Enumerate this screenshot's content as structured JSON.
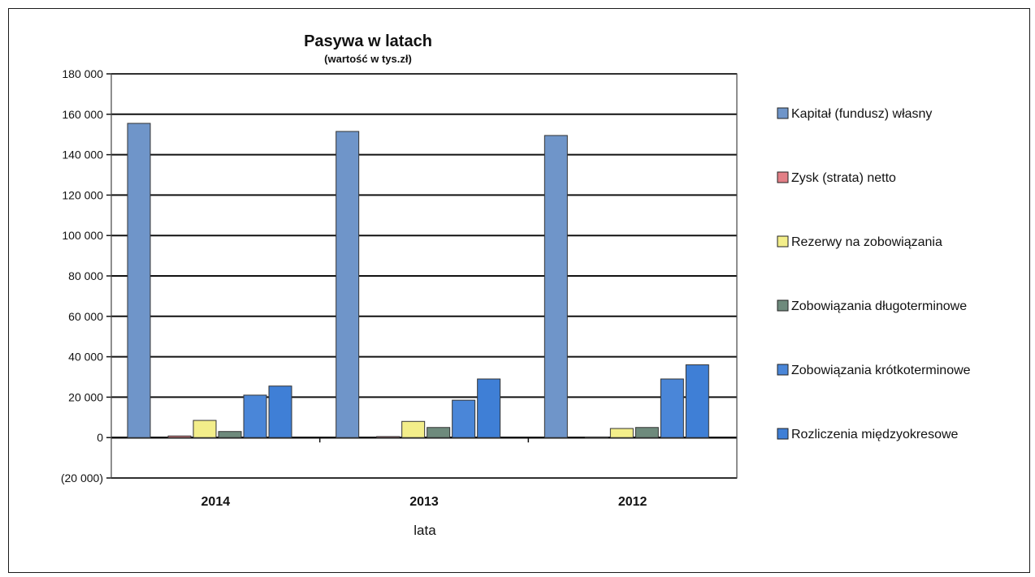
{
  "chart_data": {
    "type": "bar",
    "title": "Pasywa w latach",
    "subtitle": "(wartość w tys.zł)",
    "xlabel": "lata",
    "ylabel": "",
    "categories": [
      "2014",
      "2013",
      "2012"
    ],
    "ylim": [
      -20000,
      180000
    ],
    "yticks": [
      -20000,
      0,
      20000,
      40000,
      60000,
      80000,
      100000,
      120000,
      140000,
      160000,
      180000
    ],
    "ytick_labels": [
      "(20 000)",
      "0",
      "20 000",
      "40 000",
      "60 000",
      "80 000",
      "100 000",
      "120 000",
      "140 000",
      "160 000",
      "180 000"
    ],
    "grid": true,
    "legend_position": "right",
    "series": [
      {
        "name": "Kapitał (fundusz) własny",
        "values": [
          155500,
          151500,
          149500
        ],
        "color": "#6f95c9"
      },
      {
        "name": "Zysk (strata) netto",
        "values": [
          800,
          500,
          300
        ],
        "color": "#e27f86"
      },
      {
        "name": "Rezerwy na zobowiązania",
        "values": [
          8500,
          8000,
          4500
        ],
        "color": "#f3ee8a"
      },
      {
        "name": "Zobowiązania długoterminowe",
        "values": [
          3000,
          5000,
          5000
        ],
        "color": "#6e8a7c"
      },
      {
        "name": "Zobowiązania krótkoterminowe",
        "values": [
          21000,
          18500,
          29000
        ],
        "color": "#4a86d8"
      },
      {
        "name": "Rozliczenia międzyokresowe",
        "values": [
          25500,
          29000,
          36000
        ],
        "color": "#3f7fd6"
      }
    ]
  }
}
